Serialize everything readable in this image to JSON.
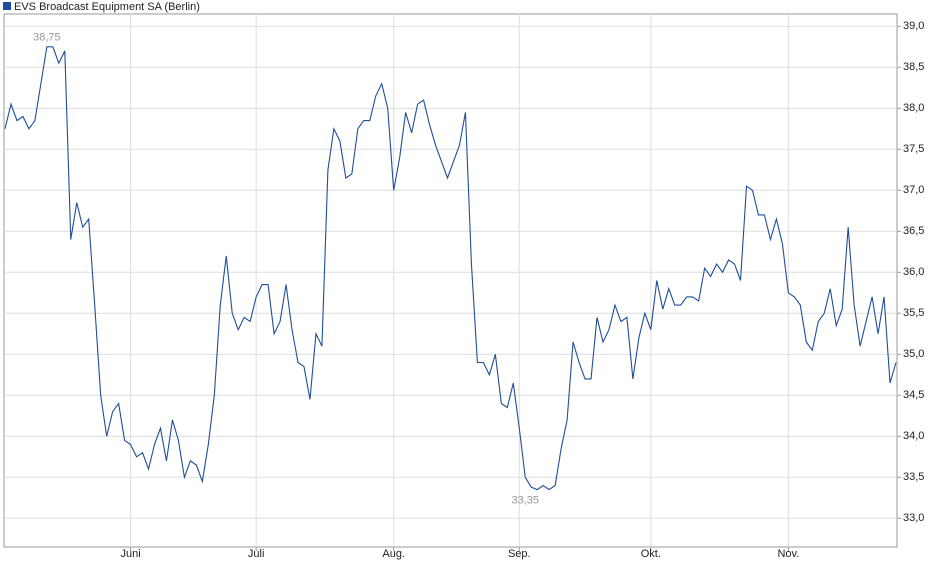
{
  "chart_data": {
    "type": "line",
    "title": "EVS Broadcast Equipment SA (Berlin)",
    "series": [
      {
        "name": "EVS Broadcast Equipment SA (Berlin)",
        "color": "#1f4e9a",
        "values": [
          37.75,
          38.05,
          37.85,
          37.9,
          37.75,
          37.85,
          38.3,
          38.75,
          38.75,
          38.55,
          38.7,
          36.4,
          36.85,
          36.55,
          36.65,
          35.6,
          34.5,
          34.0,
          34.3,
          34.4,
          33.95,
          33.9,
          33.75,
          33.8,
          33.6,
          33.9,
          34.1,
          33.7,
          34.2,
          33.95,
          33.5,
          33.7,
          33.65,
          33.45,
          33.9,
          34.5,
          35.6,
          36.2,
          35.5,
          35.3,
          35.45,
          35.4,
          35.7,
          35.85,
          35.85,
          35.25,
          35.4,
          35.85,
          35.3,
          34.9,
          34.85,
          34.45,
          35.25,
          35.1,
          37.25,
          37.75,
          37.6,
          37.15,
          37.2,
          37.75,
          37.85,
          37.85,
          38.15,
          38.3,
          38.0,
          37.0,
          37.4,
          37.95,
          37.7,
          38.05,
          38.1,
          37.8,
          37.55,
          37.35,
          37.15,
          37.35,
          37.55,
          37.95,
          36.1,
          34.9,
          34.9,
          34.75,
          35.0,
          34.4,
          34.35,
          34.65,
          34.1,
          33.5,
          33.38,
          33.35,
          33.4,
          33.35,
          33.4,
          33.85,
          34.2,
          35.15,
          34.9,
          34.7,
          34.7,
          35.45,
          35.15,
          35.3,
          35.6,
          35.4,
          35.45,
          34.7,
          35.2,
          35.5,
          35.3,
          35.9,
          35.55,
          35.8,
          35.6,
          35.6,
          35.7,
          35.7,
          35.65,
          36.05,
          35.95,
          36.1,
          36.0,
          36.15,
          36.1,
          35.9,
          37.05,
          37.0,
          36.7,
          36.7,
          36.4,
          36.65,
          36.35,
          35.75,
          35.7,
          35.6,
          35.15,
          35.05,
          35.4,
          35.5,
          35.8,
          35.35,
          35.55,
          36.55,
          35.6,
          35.1,
          35.4,
          35.7,
          35.25,
          35.7,
          34.65,
          34.9
        ]
      }
    ],
    "xlim": [
      0,
      149
    ],
    "xticks": [
      {
        "value": 21,
        "label": "Juni"
      },
      {
        "value": 42,
        "label": "Juli"
      },
      {
        "value": 65,
        "label": "Aug."
      },
      {
        "value": 86,
        "label": "Sep."
      },
      {
        "value": 108,
        "label": "Okt."
      },
      {
        "value": 131,
        "label": "Nov."
      }
    ],
    "ylim": [
      32.65,
      39.15
    ],
    "yticks": [
      {
        "value": 33,
        "label": "33,0"
      },
      {
        "value": 33.5,
        "label": "33,5"
      },
      {
        "value": 34,
        "label": "34,0"
      },
      {
        "value": 34.5,
        "label": "34,5"
      },
      {
        "value": 35,
        "label": "35,0"
      },
      {
        "value": 35.5,
        "label": "35,5"
      },
      {
        "value": 36,
        "label": "36,0"
      },
      {
        "value": 36.5,
        "label": "36,5"
      },
      {
        "value": 37,
        "label": "37,0"
      },
      {
        "value": 37.5,
        "label": "37,5"
      },
      {
        "value": 38,
        "label": "38,0"
      },
      {
        "value": 38.5,
        "label": "38,5"
      },
      {
        "value": 39,
        "label": "39,0"
      }
    ],
    "grid": true,
    "annotations": [
      {
        "label": "38,75",
        "x": 7,
        "y": 38.75
      },
      {
        "label": "33,35",
        "x": 87,
        "y": 33.35
      }
    ]
  }
}
